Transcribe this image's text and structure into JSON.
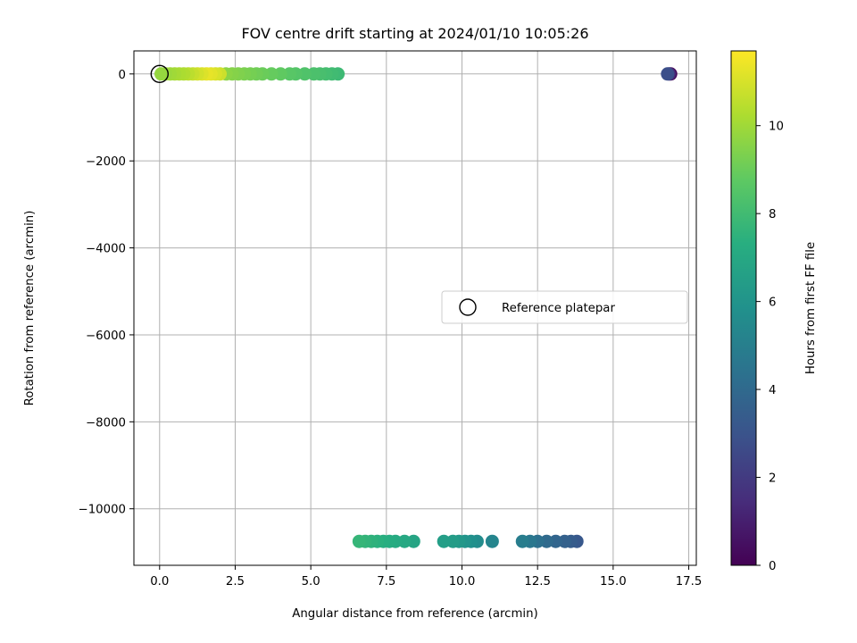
{
  "chart_data": {
    "type": "scatter",
    "title": "FOV centre drift starting at 2024/01/10 10:05:26",
    "xlabel": "Angular distance from reference (arcmin)",
    "ylabel": "Rotation from reference (arcmin)",
    "xlim": [
      -0.85,
      17.75
    ],
    "ylim": [
      -11300,
      530
    ],
    "xticks": [
      0.0,
      2.5,
      5.0,
      7.5,
      10.0,
      12.5,
      15.0,
      17.5
    ],
    "xtick_labels": [
      "0.0",
      "2.5",
      "5.0",
      "7.5",
      "10.0",
      "12.5",
      "15.0",
      "17.5"
    ],
    "yticks": [
      0,
      -2000,
      -4000,
      -6000,
      -8000,
      -10000
    ],
    "ytick_labels": [
      "0",
      "−2000",
      "−4000",
      "−6000",
      "−8000",
      "−10000"
    ],
    "grid": true,
    "colormap": "viridis",
    "colorbar": {
      "label": "Hours from first FF file",
      "range": [
        0,
        11.7
      ],
      "ticks": [
        0,
        2,
        4,
        6,
        8,
        10
      ],
      "tick_labels": [
        "0",
        "2",
        "4",
        "6",
        "8",
        "10"
      ]
    },
    "legend": {
      "placement": "center-right",
      "entries": [
        {
          "label": "Reference platepar",
          "marker": "open-circle"
        }
      ]
    },
    "reference_point": {
      "x": 0.0,
      "y": 0
    },
    "points": [
      {
        "x": 16.9,
        "y": 0,
        "c": 0.3
      },
      {
        "x": 16.85,
        "y": 0,
        "c": 1.5
      },
      {
        "x": 16.8,
        "y": 0,
        "c": 2.8
      },
      {
        "x": 13.8,
        "y": -10750,
        "c": 3.2
      },
      {
        "x": 13.6,
        "y": -10750,
        "c": 3.4
      },
      {
        "x": 13.4,
        "y": -10750,
        "c": 3.6
      },
      {
        "x": 13.1,
        "y": -10750,
        "c": 3.8
      },
      {
        "x": 12.8,
        "y": -10750,
        "c": 4.0
      },
      {
        "x": 12.5,
        "y": -10750,
        "c": 4.3
      },
      {
        "x": 12.25,
        "y": -10750,
        "c": 4.6
      },
      {
        "x": 12.0,
        "y": -10750,
        "c": 4.9
      },
      {
        "x": 11.0,
        "y": -10750,
        "c": 5.3
      },
      {
        "x": 10.5,
        "y": -10750,
        "c": 5.6
      },
      {
        "x": 10.3,
        "y": -10750,
        "c": 5.8
      },
      {
        "x": 10.1,
        "y": -10750,
        "c": 6.0
      },
      {
        "x": 9.9,
        "y": -10750,
        "c": 6.2
      },
      {
        "x": 9.7,
        "y": -10750,
        "c": 6.4
      },
      {
        "x": 9.4,
        "y": -10750,
        "c": 6.5
      },
      {
        "x": 8.4,
        "y": -10750,
        "c": 6.8
      },
      {
        "x": 8.1,
        "y": -10750,
        "c": 7.0
      },
      {
        "x": 7.8,
        "y": -10750,
        "c": 7.1
      },
      {
        "x": 7.6,
        "y": -10750,
        "c": 7.2
      },
      {
        "x": 7.4,
        "y": -10750,
        "c": 7.3
      },
      {
        "x": 7.2,
        "y": -10750,
        "c": 7.4
      },
      {
        "x": 7.0,
        "y": -10750,
        "c": 7.5
      },
      {
        "x": 6.8,
        "y": -10750,
        "c": 7.6
      },
      {
        "x": 6.6,
        "y": -10750,
        "c": 7.7
      },
      {
        "x": 5.9,
        "y": 0,
        "c": 7.9
      },
      {
        "x": 5.7,
        "y": 0,
        "c": 8.0
      },
      {
        "x": 5.5,
        "y": 0,
        "c": 8.1
      },
      {
        "x": 5.3,
        "y": 0,
        "c": 8.2
      },
      {
        "x": 5.1,
        "y": 0,
        "c": 8.3
      },
      {
        "x": 4.8,
        "y": 0,
        "c": 8.4
      },
      {
        "x": 4.5,
        "y": 0,
        "c": 8.5
      },
      {
        "x": 4.3,
        "y": 0,
        "c": 8.6
      },
      {
        "x": 4.0,
        "y": 0,
        "c": 8.8
      },
      {
        "x": 3.7,
        "y": 0,
        "c": 8.9
      },
      {
        "x": 3.4,
        "y": 0,
        "c": 9.0
      },
      {
        "x": 3.2,
        "y": 0,
        "c": 9.1
      },
      {
        "x": 3.0,
        "y": 0,
        "c": 9.2
      },
      {
        "x": 2.8,
        "y": 0,
        "c": 9.3
      },
      {
        "x": 2.6,
        "y": 0,
        "c": 9.4
      },
      {
        "x": 2.4,
        "y": 0,
        "c": 9.5
      },
      {
        "x": 2.2,
        "y": 0,
        "c": 9.6
      },
      {
        "x": 2.0,
        "y": 0,
        "c": 10.8
      },
      {
        "x": 1.85,
        "y": 0,
        "c": 11.0
      },
      {
        "x": 1.7,
        "y": 0,
        "c": 11.2
      },
      {
        "x": 1.55,
        "y": 0,
        "c": 11.3
      },
      {
        "x": 1.4,
        "y": 0,
        "c": 11.1
      },
      {
        "x": 1.25,
        "y": 0,
        "c": 10.9
      },
      {
        "x": 1.1,
        "y": 0,
        "c": 10.7
      },
      {
        "x": 0.95,
        "y": 0,
        "c": 10.5
      },
      {
        "x": 0.8,
        "y": 0,
        "c": 10.3
      },
      {
        "x": 0.65,
        "y": 0,
        "c": 10.2
      },
      {
        "x": 0.5,
        "y": 0,
        "c": 10.1
      },
      {
        "x": 0.35,
        "y": 0,
        "c": 10.0
      },
      {
        "x": 0.2,
        "y": 0,
        "c": 9.9
      },
      {
        "x": 0.05,
        "y": 0,
        "c": 9.8
      }
    ]
  }
}
